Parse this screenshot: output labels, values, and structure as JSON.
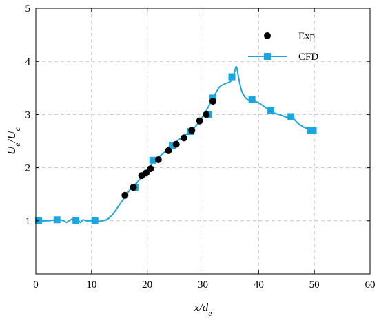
{
  "chart_data": {
    "type": "scatter",
    "title": "",
    "xlabel": {
      "main": "x/d",
      "sub": "e"
    },
    "ylabel": {
      "main": "U",
      "sub1": "e",
      "sep": "/U",
      "sub2": "c"
    },
    "xlim": [
      0,
      60
    ],
    "ylim": [
      0,
      5
    ],
    "xticks": [
      "0",
      "10",
      "20",
      "30",
      "40",
      "50",
      "60"
    ],
    "yticks": [
      "1",
      "2",
      "3",
      "4",
      "5"
    ],
    "grid": true,
    "legend_position": "top-right",
    "colors": {
      "exp": "#000000",
      "cfd": "#1aa7e0",
      "grid": "#c8c8c8"
    },
    "series": [
      {
        "name": "Exp",
        "kind": "scatter",
        "x": [
          16.0,
          17.5,
          19.0,
          19.8,
          20.6,
          22.0,
          23.8,
          25.2,
          26.6,
          28.0,
          29.4,
          30.6,
          31.8
        ],
        "y": [
          1.48,
          1.63,
          1.85,
          1.9,
          1.98,
          2.15,
          2.32,
          2.44,
          2.56,
          2.7,
          2.88,
          3.0,
          3.25
        ]
      },
      {
        "name": "CFD",
        "kind": "line",
        "curve": {
          "x": [
            0.5,
            2,
            3,
            4,
            5,
            5.5,
            6,
            6.5,
            7,
            7.5,
            8,
            8.5,
            9,
            10,
            11,
            12,
            13,
            14,
            15,
            16,
            17,
            18,
            19,
            20,
            21,
            22,
            23,
            24,
            25,
            26,
            27,
            28,
            29,
            30,
            31,
            32,
            33,
            34,
            35,
            35.6,
            36,
            36.4,
            37,
            38,
            39,
            40,
            41,
            42,
            43,
            44,
            45,
            46,
            47,
            48,
            49,
            50
          ],
          "y": [
            1.0,
            1.0,
            1.01,
            1.02,
            1.0,
            0.97,
            1.0,
            1.03,
            0.99,
            1.02,
            0.97,
            1.02,
            1.0,
            1.0,
            0.99,
            1.0,
            1.04,
            1.15,
            1.3,
            1.45,
            1.6,
            1.7,
            1.83,
            1.93,
            2.1,
            2.2,
            2.28,
            2.4,
            2.48,
            2.55,
            2.63,
            2.7,
            2.82,
            2.97,
            3.15,
            3.35,
            3.52,
            3.58,
            3.63,
            3.78,
            3.9,
            3.7,
            3.43,
            3.28,
            3.26,
            3.22,
            3.15,
            3.08,
            3.02,
            2.99,
            2.95,
            2.95,
            2.84,
            2.77,
            2.73,
            2.7
          ]
        },
        "markers": {
          "x": [
            0.5,
            3.8,
            7.2,
            10.6,
            17.8,
            21.0,
            24.5,
            27.8,
            31.0,
            31.8,
            35.2,
            38.8,
            42.2,
            45.8,
            49.3,
            49.8
          ],
          "y": [
            1.0,
            1.02,
            1.01,
            1.0,
            1.63,
            2.14,
            2.42,
            2.68,
            3.0,
            3.31,
            3.71,
            3.28,
            3.08,
            2.96,
            2.7,
            2.7
          ]
        }
      }
    ]
  }
}
